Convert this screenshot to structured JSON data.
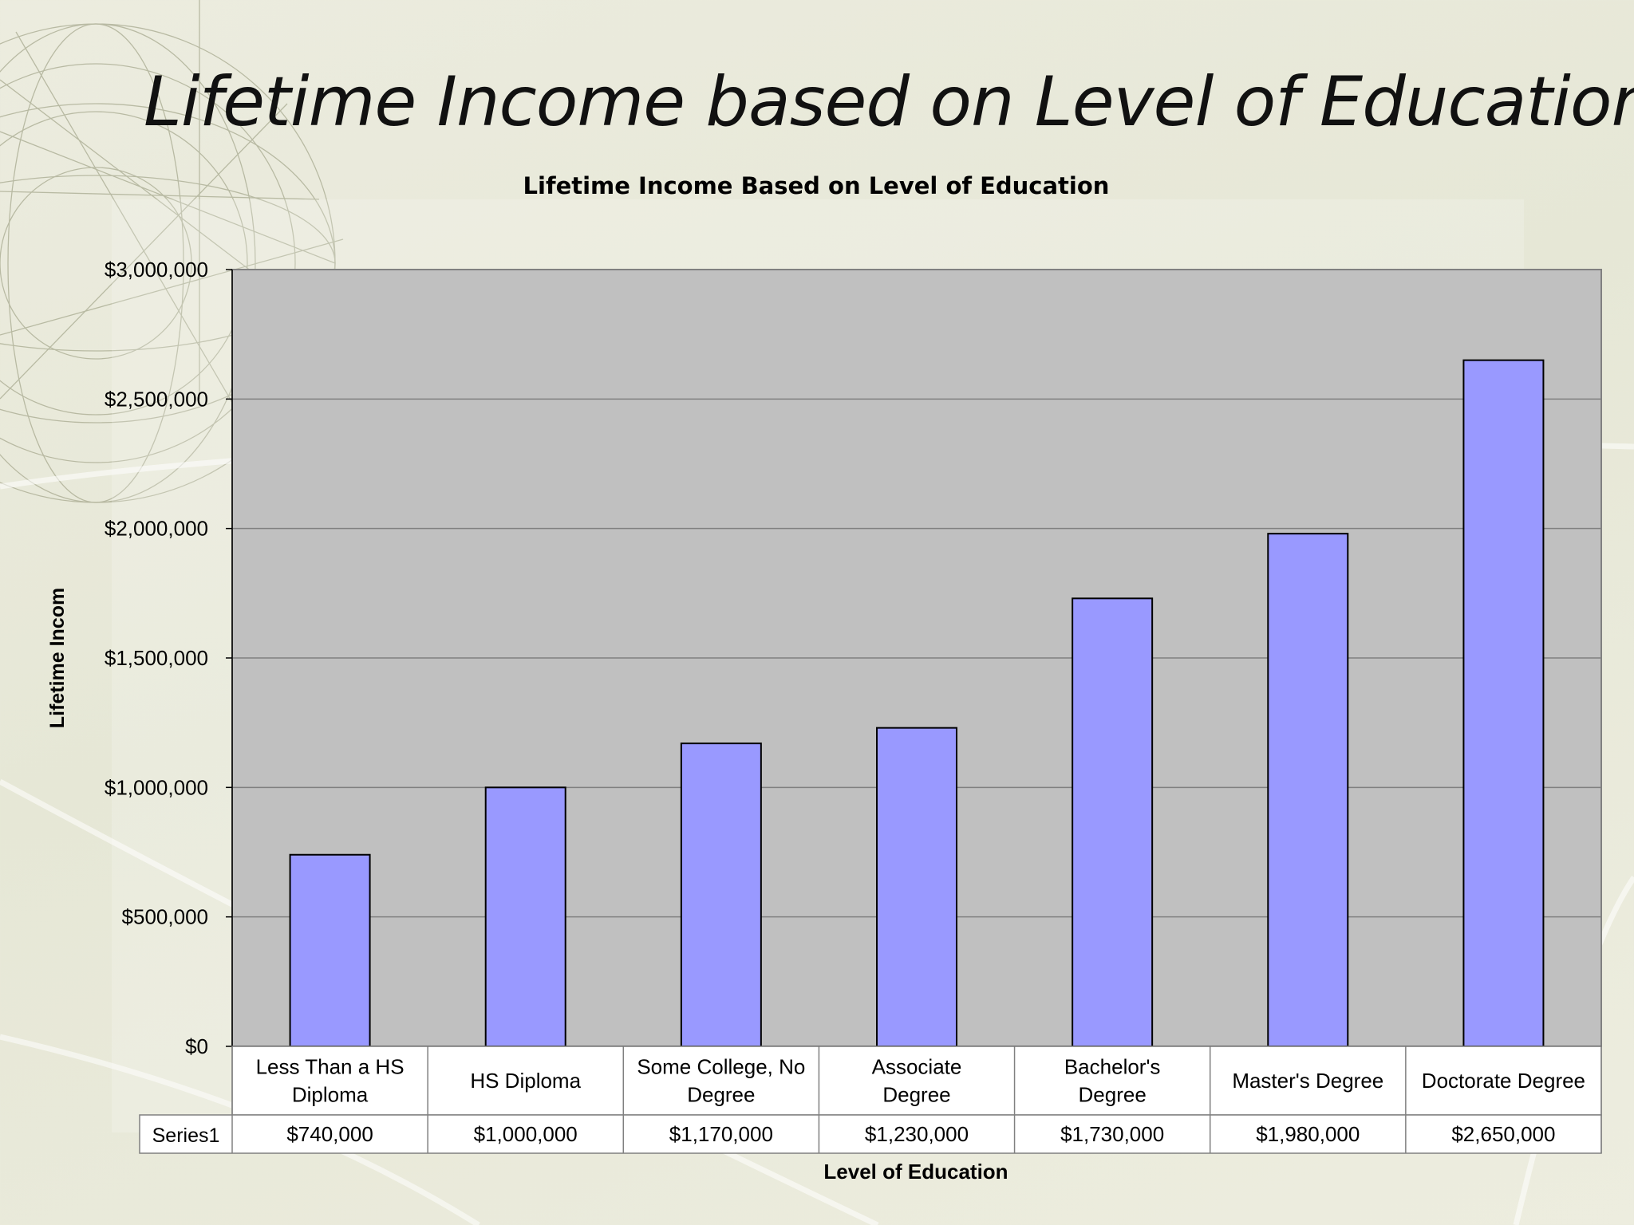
{
  "slide_title": "Lifetime Income based on Level of Education",
  "chart_data": {
    "type": "bar",
    "title": "Lifetime Income Based on Level of Education",
    "xlabel": "Level of Education",
    "ylabel": "Lifetime Incom",
    "ylim": [
      0,
      3000000
    ],
    "y_ticks": [
      0,
      500000,
      1000000,
      1500000,
      2000000,
      2500000,
      3000000
    ],
    "y_tick_labels": [
      "$0",
      "$500,000",
      "$1,000,000",
      "$1,500,000",
      "$2,000,000",
      "$2,500,000",
      "$3,000,000"
    ],
    "grid": true,
    "legend": "none",
    "categories": [
      [
        "Less Than a HS",
        "Diploma"
      ],
      [
        "HS Diploma"
      ],
      [
        "Some College, No",
        "Degree"
      ],
      [
        "Associate",
        "Degree"
      ],
      [
        "Bachelor's",
        "Degree"
      ],
      [
        "Master's Degree"
      ],
      [
        "Doctorate Degree"
      ]
    ],
    "series": [
      {
        "name": "Series1",
        "values": [
          740000,
          1000000,
          1170000,
          1230000,
          1730000,
          1980000,
          2650000
        ],
        "labels": [
          "$740,000",
          "$1,000,000",
          "$1,170,000",
          "$1,230,000",
          "$1,730,000",
          "$1,980,000",
          "$2,650,000"
        ]
      }
    ],
    "colors": {
      "bar_fill": "#9999ff",
      "plot_background": "#c0c0c0",
      "gridline": "#808080",
      "table_cell": "#ffffff"
    }
  }
}
